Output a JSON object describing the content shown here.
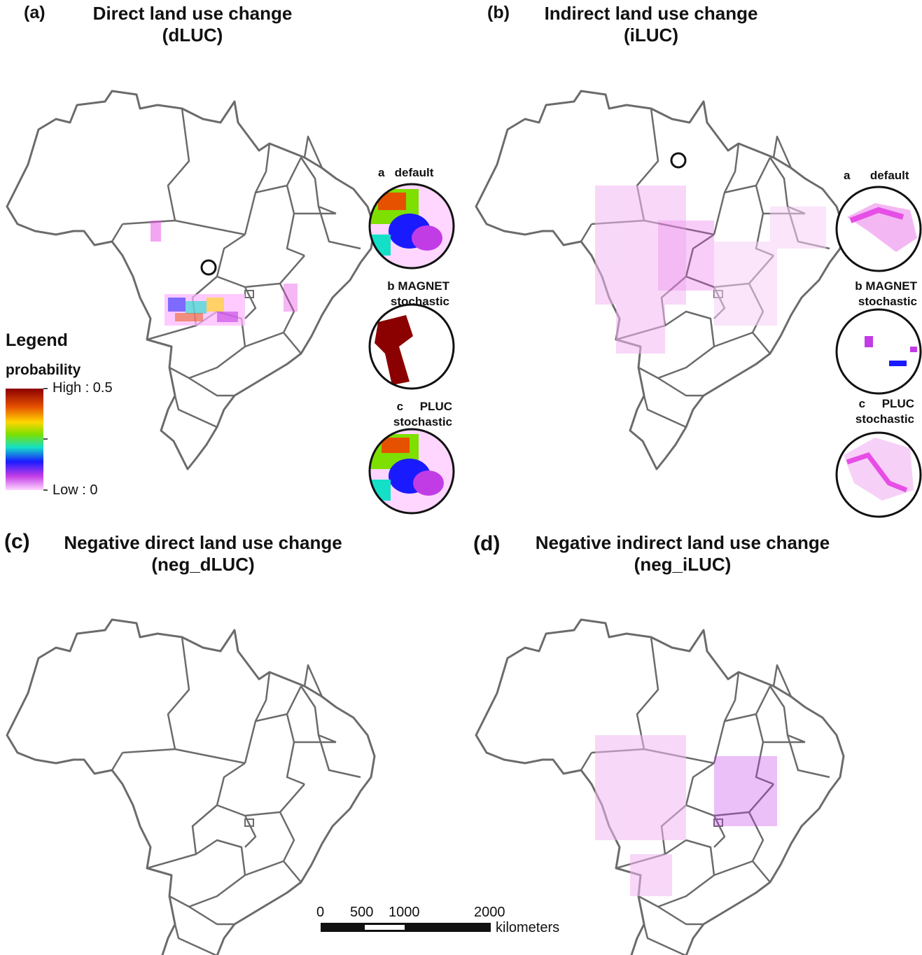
{
  "panels": [
    {
      "id": "a",
      "letter": "(a)",
      "title1": "Direct land use change",
      "title2": "(dLUC)"
    },
    {
      "id": "b",
      "letter": "(b)",
      "title1": "Indirect land use change",
      "title2": "(iLUC)"
    },
    {
      "id": "c",
      "letter": "(c)",
      "title1": "Negative direct land use change",
      "title2": "(neg_dLUC)"
    },
    {
      "id": "d",
      "letter": "(d)",
      "title1": "Negative indirect land use change",
      "title2": "(neg_iLUC)"
    }
  ],
  "insets": {
    "a_label": "a",
    "a_text": "default",
    "b_label": "b",
    "b_text1": "MAGNET",
    "b_text2": "stochastic",
    "c_label": "c",
    "c_text1": "PLUC",
    "c_text2": "stochastic"
  },
  "legend": {
    "title": "Legend",
    "subtitle": "probability",
    "high": "High : 0.5",
    "low": "Low : 0",
    "colors": [
      "#8b0000",
      "#e65100",
      "#ffd600",
      "#7ee000",
      "#14e0c8",
      "#1a1aff",
      "#c23ce6",
      "#ffd6ff"
    ]
  },
  "scale_bar": {
    "ticks": [
      "0",
      "500",
      "1000",
      "2000"
    ],
    "unit": "kilometers"
  },
  "colors": {
    "border": "#6b6b6b",
    "pink": "#e64ee6",
    "magenta": "#b000d0",
    "blue": "#2a2aff"
  }
}
